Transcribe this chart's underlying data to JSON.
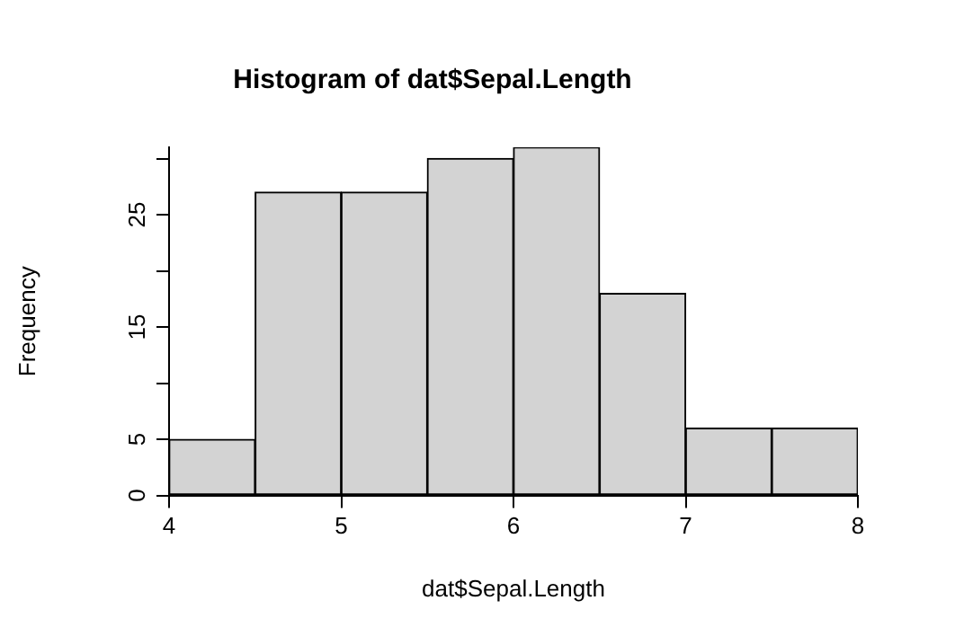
{
  "chart_data": {
    "type": "histogram",
    "title": "Histogram of dat$Sepal.Length",
    "xlabel": "dat$Sepal.Length",
    "ylabel": "Frequency",
    "bins": [
      4,
      4.5,
      5,
      5.5,
      6,
      6.5,
      7,
      7.5,
      8
    ],
    "values": [
      5,
      27,
      27,
      30,
      31,
      18,
      6,
      6
    ],
    "color": "#d3d3d3",
    "xlim": [
      4,
      8
    ],
    "xticks": [
      4,
      5,
      6,
      7,
      8
    ],
    "ylim": [
      0,
      31
    ],
    "yticks": [
      0,
      5,
      {
        "value": 10,
        "label": null
      },
      15,
      {
        "value": 20,
        "label": null
      },
      25,
      {
        "value": 30,
        "label": null
      }
    ],
    "grid": false
  }
}
